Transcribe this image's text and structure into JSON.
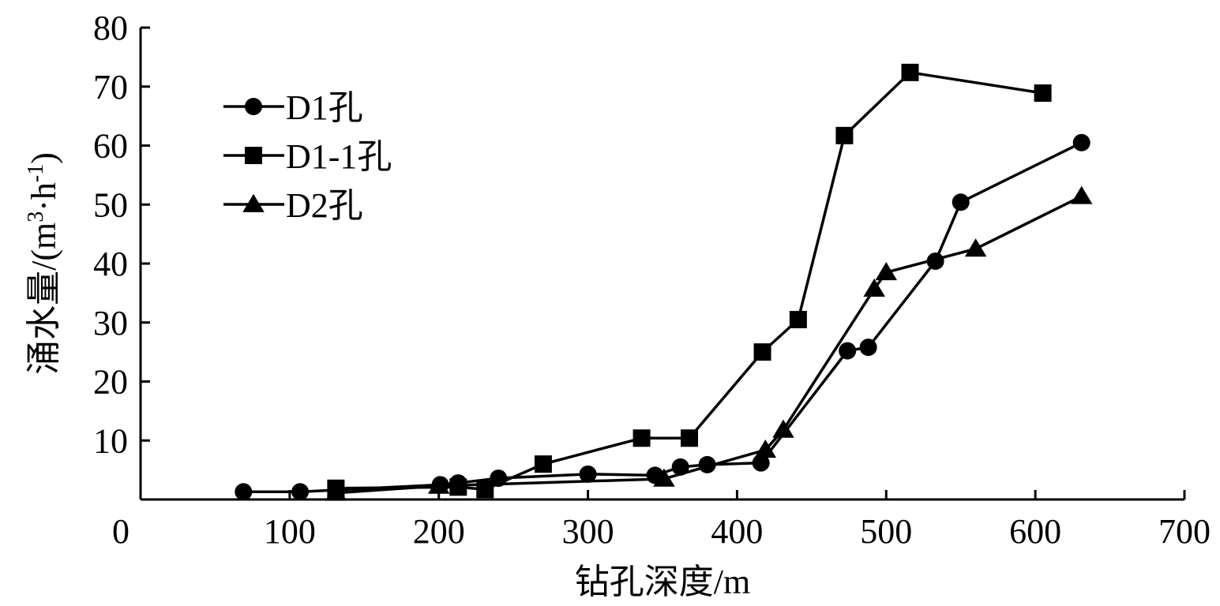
{
  "chart_data": {
    "type": "line",
    "title": "",
    "xlabel": "钻孔深度/m",
    "ylabel": "涌水量/(m³·h⁻¹)",
    "ylabel_parts": {
      "main": "涌水量/(m",
      "sup1": "3",
      "mid": "·h",
      "sup2": "-1",
      "end": ")"
    },
    "xlim": [
      0,
      700
    ],
    "ylim": [
      0,
      80
    ],
    "xticks": [
      0,
      100,
      200,
      300,
      400,
      500,
      600,
      700
    ],
    "yticks": [
      10,
      20,
      30,
      40,
      50,
      60,
      70,
      80
    ],
    "grid": false,
    "legend_position": "top-left",
    "series": [
      {
        "name": "D1孔",
        "marker": "circle",
        "x": [
          69,
          107,
          201,
          213,
          240,
          300,
          345,
          362,
          380,
          416,
          474,
          488,
          533,
          550,
          631
        ],
        "y": [
          1.3,
          1.3,
          2.5,
          2.8,
          3.6,
          4.3,
          4.1,
          5.5,
          5.9,
          6.2,
          25.2,
          25.8,
          40.4,
          50.4,
          60.5
        ]
      },
      {
        "name": "D1-1孔",
        "marker": "square",
        "x": [
          131,
          213,
          231,
          270,
          336,
          368,
          417,
          441,
          472,
          516,
          605
        ],
        "y": [
          1.9,
          2.1,
          1.7,
          6.0,
          10.4,
          10.4,
          25.0,
          30.5,
          61.7,
          72.4,
          68.9
        ]
      },
      {
        "name": "D2孔",
        "marker": "triangle",
        "x": [
          131,
          200,
          351,
          419,
          431,
          492,
          500,
          560,
          631
        ],
        "y": [
          1.1,
          2.3,
          3.5,
          8.4,
          11.8,
          35.7,
          38.5,
          42.5,
          51.4
        ]
      }
    ]
  }
}
